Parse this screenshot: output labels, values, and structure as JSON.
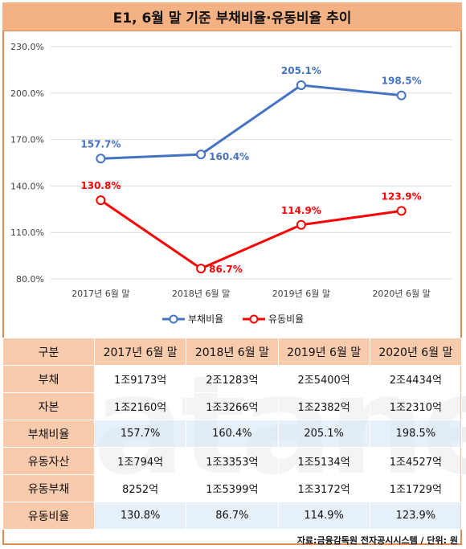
{
  "title": "E1, 6월 말 기준 부채비율·유동비율 추이",
  "chart_data": {
    "type": "line",
    "categories": [
      "2017년 6월 말",
      "2018년 6월 말",
      "2019년 6월 말",
      "2020년 6월 말"
    ],
    "ylim": [
      80,
      230
    ],
    "yticks": [
      "80.0%",
      "110.0%",
      "140.0%",
      "170.0%",
      "200.0%",
      "230.0%"
    ],
    "ytick_values": [
      80,
      110,
      140,
      170,
      200,
      230
    ],
    "grid": true,
    "legend_position": "bottom",
    "series": [
      {
        "name": "부채비율",
        "color": "#4472c4",
        "values": [
          157.7,
          160.4,
          205.1,
          198.5
        ],
        "labels": [
          "157.7%",
          "160.4%",
          "205.1%",
          "198.5%"
        ]
      },
      {
        "name": "유동비율",
        "color": "#ff0000",
        "values": [
          130.8,
          86.7,
          114.9,
          123.9
        ],
        "labels": [
          "130.8%",
          "86.7%",
          "114.9%",
          "123.9%"
        ]
      }
    ]
  },
  "table": {
    "headers": [
      "구분",
      "2017년 6월 말",
      "2018년 6월 말",
      "2019년 6월 말",
      "2020년 6월 말"
    ],
    "rows": [
      {
        "label": "부채",
        "values": [
          "1조9173억",
          "2조1283억",
          "2조5400억",
          "2조4434억"
        ]
      },
      {
        "label": "자본",
        "values": [
          "1조2160억",
          "1조3266억",
          "1조2382억",
          "1조2310억"
        ]
      },
      {
        "label": "부채비율",
        "values": [
          "157.7%",
          "160.4%",
          "205.1%",
          "198.5%"
        ]
      },
      {
        "label": "유동자산",
        "values": [
          "1조794억",
          "1조3353억",
          "1조5134억",
          "1조4527억"
        ]
      },
      {
        "label": "유동부채",
        "values": [
          "8252억",
          "1조5399억",
          "1조3172억",
          "1조1729억"
        ]
      },
      {
        "label": "유동비율",
        "values": [
          "130.8%",
          "86.7%",
          "114.9%",
          "123.9%"
        ]
      }
    ]
  },
  "watermark": "datanews",
  "source": "자료:금융감독원 전자공시시스템 / 단위: 원"
}
